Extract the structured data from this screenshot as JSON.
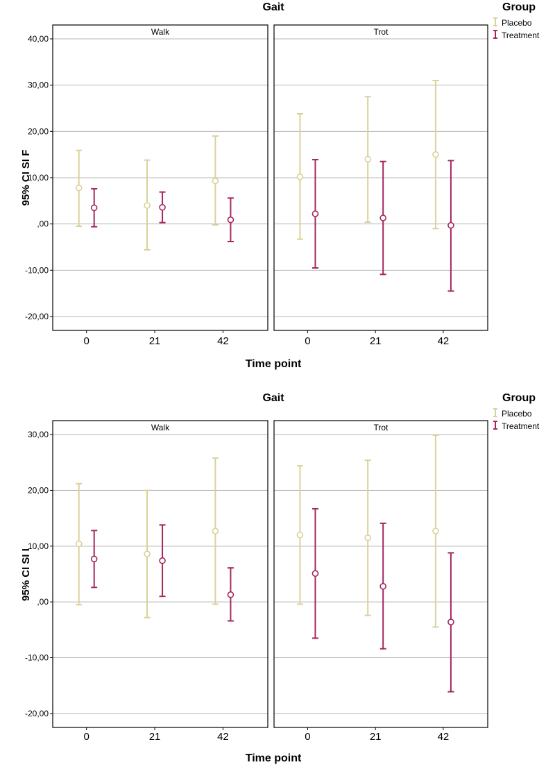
{
  "colors": {
    "placebo": "#d8d29a",
    "treatment": "#a5275d",
    "grid": "#b4b4b4",
    "frame": "#000000"
  },
  "chart_data": [
    {
      "type": "errorbar",
      "title": "Gait",
      "legend_title": "Group",
      "legend": [
        "Placebo",
        "Treatment"
      ],
      "ylabel": "95% CI SI F",
      "xlabel": "Time point",
      "ylim": [
        -23,
        43
      ],
      "yticks": [
        -20,
        -10,
        0,
        10,
        20,
        30,
        40
      ],
      "ytick_labels": [
        "-20,00",
        "-10,00",
        ",00",
        "10,00",
        "20,00",
        "30,00",
        "40,00"
      ],
      "categories": [
        "0",
        "21",
        "42"
      ],
      "facets": [
        {
          "name": "Walk",
          "series": [
            {
              "name": "Placebo",
              "mean": [
                7.8,
                4.0,
                9.3
              ],
              "lower": [
                -0.5,
                -5.6,
                -0.2
              ],
              "upper": [
                15.9,
                13.8,
                19.0
              ]
            },
            {
              "name": "Treatment",
              "mean": [
                3.5,
                3.6,
                0.9
              ],
              "lower": [
                -0.6,
                0.3,
                -3.8
              ],
              "upper": [
                7.6,
                6.9,
                5.6
              ]
            }
          ]
        },
        {
          "name": "Trot",
          "series": [
            {
              "name": "Placebo",
              "mean": [
                10.2,
                14.0,
                15.0
              ],
              "lower": [
                -3.3,
                0.4,
                -1.0
              ],
              "upper": [
                23.8,
                27.5,
                31.0
              ]
            },
            {
              "name": "Treatment",
              "mean": [
                2.2,
                1.3,
                -0.3
              ],
              "lower": [
                -9.5,
                -10.9,
                -14.5
              ],
              "upper": [
                13.9,
                13.5,
                13.7
              ]
            }
          ]
        }
      ]
    },
    {
      "type": "errorbar",
      "title": "Gait",
      "legend_title": "Group",
      "legend": [
        "Placebo",
        "Treatment"
      ],
      "ylabel": "95% CI SI I",
      "xlabel": "Time point",
      "ylim": [
        -22.5,
        32.5
      ],
      "yticks": [
        -20,
        -10,
        0,
        10,
        20,
        30
      ],
      "ytick_labels": [
        "-20,00",
        "-10,00",
        ",00",
        "10,00",
        "20,00",
        "30,00"
      ],
      "categories": [
        "0",
        "21",
        "42"
      ],
      "facets": [
        {
          "name": "Walk",
          "series": [
            {
              "name": "Placebo",
              "mean": [
                10.4,
                8.6,
                12.7
              ],
              "lower": [
                -0.5,
                -2.8,
                -0.4
              ],
              "upper": [
                21.2,
                20.0,
                25.8
              ]
            },
            {
              "name": "Treatment",
              "mean": [
                7.7,
                7.4,
                1.3
              ],
              "lower": [
                2.6,
                1.0,
                -3.4
              ],
              "upper": [
                12.8,
                13.8,
                6.1
              ]
            }
          ]
        },
        {
          "name": "Trot",
          "series": [
            {
              "name": "Placebo",
              "mean": [
                12.0,
                11.5,
                12.7
              ],
              "lower": [
                -0.4,
                -2.4,
                -4.5
              ],
              "upper": [
                24.4,
                25.4,
                29.9
              ]
            },
            {
              "name": "Treatment",
              "mean": [
                5.1,
                2.8,
                -3.6
              ],
              "lower": [
                -6.5,
                -8.4,
                -16.1
              ],
              "upper": [
                16.7,
                14.1,
                8.8
              ]
            }
          ]
        }
      ]
    }
  ]
}
